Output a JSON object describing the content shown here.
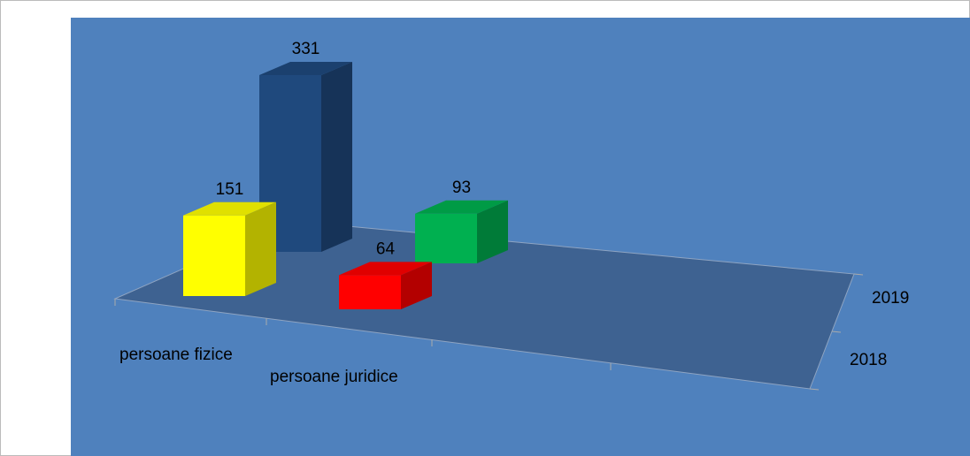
{
  "chart_data": {
    "type": "bar3d",
    "categories": [
      "persoane fizice",
      "persoane juridice"
    ],
    "series": [
      {
        "name": "2018",
        "colors": [
          "#ffff00",
          "#ff0000"
        ],
        "values": [
          151,
          64
        ]
      },
      {
        "name": "2019",
        "colors": [
          "#1f497d",
          "#00b050"
        ],
        "values": [
          331,
          93
        ]
      }
    ]
  }
}
